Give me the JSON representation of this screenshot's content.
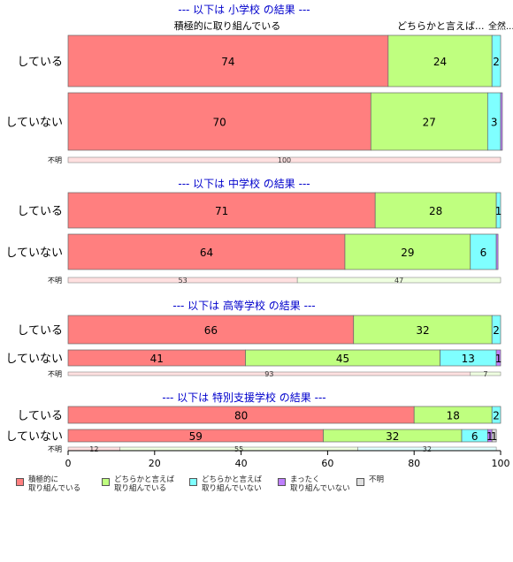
{
  "chart_data": {
    "type": "bar",
    "orientation": "horizontal",
    "stacked": true,
    "xlim": [
      0,
      100
    ],
    "x_ticks": [
      0,
      20,
      40,
      60,
      80,
      100
    ],
    "grid": false,
    "legend_position": "bottom-left",
    "categories_legend": [
      {
        "label": "積極的に\n取り組んでいる",
        "color": "#FF7F7F"
      },
      {
        "label": "どちらかと言えば\n取り組んでいる",
        "color": "#BFFF7F"
      },
      {
        "label": "どちらかと言えば\n取り組んでいない",
        "color": "#7FFFFF"
      },
      {
        "label": "まったく\n取り組んでいない",
        "color": "#BF7FFF"
      },
      {
        "label": "不明",
        "color": "#E0E0E0"
      }
    ],
    "top_annotations": {
      "left": "積極的に取り組んでいる",
      "right": "どちらかと言えば...",
      "right_overlap": "全然...不明"
    },
    "panels": [
      {
        "title": "--- 以下は 小学校 の結果 ---",
        "rows": [
          {
            "label": "している",
            "values": [
              74,
              24,
              2,
              0,
              0
            ],
            "labels": [
              "74",
              "24",
              "2",
              "",
              ""
            ]
          },
          {
            "label": "していない",
            "values": [
              70,
              27,
              3,
              0.4,
              0
            ],
            "labels": [
              "70",
              "27",
              "3",
              "",
              ""
            ]
          }
        ],
        "unknown": {
          "label": "不明",
          "values": [
            100,
            0
          ],
          "labels": [
            "100",
            ""
          ]
        }
      },
      {
        "title": "--- 以下は 中学校 の結果 ---",
        "rows": [
          {
            "label": "している",
            "values": [
              71,
              28,
              1,
              0,
              0
            ],
            "labels": [
              "71",
              "28",
              "1",
              "",
              ""
            ]
          },
          {
            "label": "していない",
            "values": [
              64,
              29,
              6,
              0.4,
              0
            ],
            "labels": [
              "64",
              "29",
              "6",
              "",
              ""
            ]
          }
        ],
        "unknown": {
          "label": "不明",
          "values": [
            53,
            47
          ],
          "labels": [
            "53",
            "47"
          ]
        }
      },
      {
        "title": "--- 以下は 高等学校 の結果 ---",
        "rows": [
          {
            "label": "している",
            "values": [
              66,
              32,
              2,
              0,
              0
            ],
            "labels": [
              "66",
              "32",
              "2",
              "",
              ""
            ]
          },
          {
            "label": "していない",
            "values": [
              41,
              45,
              13,
              1,
              0
            ],
            "labels": [
              "41",
              "45",
              "13",
              "1",
              ""
            ]
          }
        ],
        "unknown": {
          "label": "不明",
          "values": [
            93,
            7
          ],
          "labels": [
            "93",
            "7"
          ]
        }
      },
      {
        "title": "--- 以下は 特別支援学校 の結果 ---",
        "rows": [
          {
            "label": "している",
            "values": [
              80,
              18,
              2,
              0,
              0
            ],
            "labels": [
              "80",
              "18",
              "2",
              "",
              ""
            ]
          },
          {
            "label": "していない",
            "values": [
              59,
              32,
              6,
              1,
              1
            ],
            "labels": [
              "59",
              "32",
              "6",
              "1",
              "1"
            ]
          }
        ],
        "unknown": {
          "label": "不明",
          "values": [
            12,
            55,
            32
          ],
          "labels": [
            "12",
            "55",
            "32"
          ]
        }
      }
    ]
  }
}
